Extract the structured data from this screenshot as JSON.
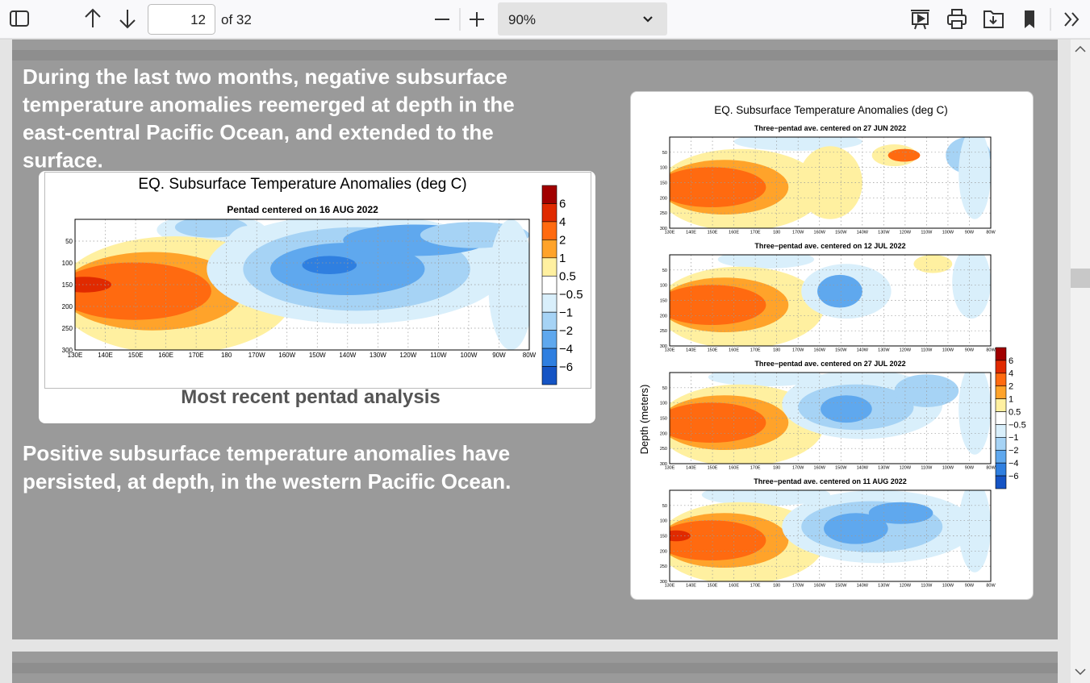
{
  "toolbar": {
    "page_number": "12",
    "page_count": "of 32",
    "zoom": "90%"
  },
  "slide": {
    "paragraph_1": [
      "During the last two months, negative subsurface",
      "temperature anomalies reemerged at depth in the",
      "east-central Pacific Ocean, and extended to the",
      "surface."
    ],
    "paragraph_2": [
      "Positive subsurface temperature anomalies have",
      "persisted, at depth, in the western Pacific Ocean."
    ],
    "main_figure": {
      "title": "EQ. Subsurface Temperature Anomalies (deg C)",
      "subtitle": "Pentad centered on 16 AUG 2022",
      "caption": "Most recent pentad analysis",
      "yticks": [
        "50",
        "100",
        "150",
        "200",
        "250",
        "300"
      ],
      "xticks": [
        "130E",
        "140E",
        "150E",
        "160E",
        "170E",
        "180",
        "170W",
        "160W",
        "150W",
        "140W",
        "130W",
        "120W",
        "110W",
        "100W",
        "90W",
        "80W"
      ],
      "colorbar": [
        "6",
        "4",
        "2",
        "1",
        "0.5",
        "−0.5",
        "−1",
        "−2",
        "−4",
        "−6"
      ]
    },
    "pentad_figure": {
      "title": "EQ. Subsurface Temperature Anomalies (deg C)",
      "y_label": "Depth (meters)",
      "panels": [
        "Three−pentad ave. centered on 27 JUN 2022",
        "Three−pentad ave. centered on 12 JUL 2022",
        "Three−pentad ave. centered on 27 JUL 2022",
        "Three−pentad ave. centered on 11 AUG 2022"
      ],
      "yticks": [
        "50",
        "100",
        "150",
        "200",
        "250",
        "300"
      ],
      "xticks": [
        "130E",
        "140E",
        "150E",
        "160E",
        "170E",
        "180",
        "170W",
        "160W",
        "150W",
        "140W",
        "130W",
        "120W",
        "110W",
        "100W",
        "90W",
        "80W"
      ],
      "colorbar": [
        "6",
        "4",
        "2",
        "1",
        "0.5",
        "−0.5",
        "−1",
        "−2",
        "−4",
        "−6"
      ]
    }
  }
}
